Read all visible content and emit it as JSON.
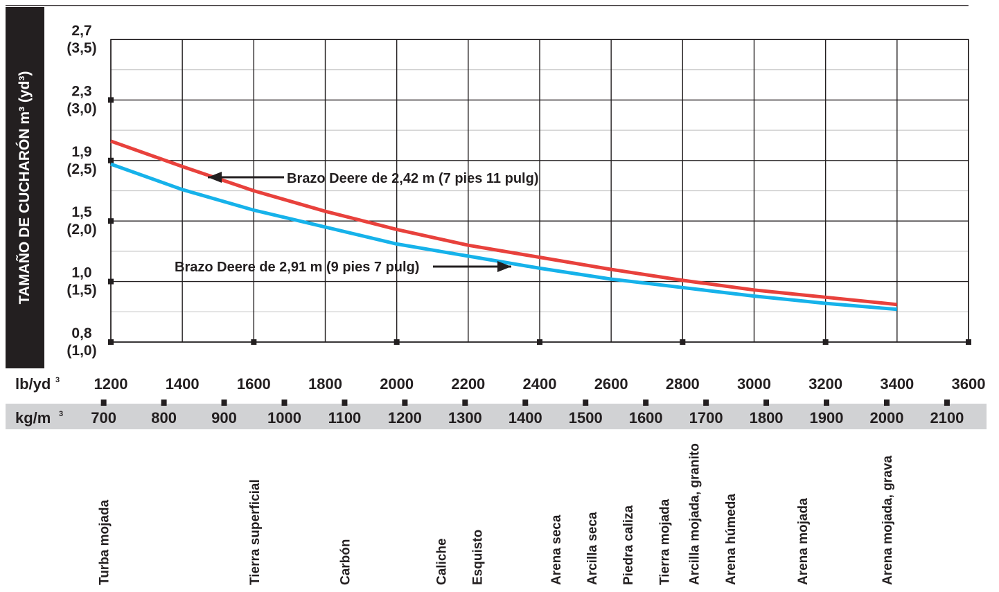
{
  "chart_data": {
    "type": "line",
    "ylabel": "TAMAÑO DE CUCHARÓN m³ (yd³)",
    "y_ticks": [
      {
        "m3": "2,7",
        "yd3": "(3,5)"
      },
      {
        "m3": "2,3",
        "yd3": "(3,0)"
      },
      {
        "m3": "1,9",
        "yd3": "(2,5)"
      },
      {
        "m3": "1,5",
        "yd3": "(2,0)"
      },
      {
        "m3": "1,0",
        "yd3": "(1,5)"
      },
      {
        "m3": "0,8",
        "yd3": "(1,0)"
      }
    ],
    "ylim_yd3": [
      1.0,
      3.5
    ],
    "x_axis_lb": {
      "label": "lb/yd",
      "sup": "3",
      "ticks": [
        1200,
        1400,
        1600,
        1800,
        2000,
        2200,
        2400,
        2600,
        2800,
        3000,
        3200,
        3400,
        3600
      ]
    },
    "x_axis_kg": {
      "label": "kg/m",
      "sup": "3",
      "ticks": [
        700,
        800,
        900,
        1000,
        1100,
        1200,
        1300,
        1400,
        1500,
        1600,
        1700,
        1800,
        1900,
        2000,
        2100
      ]
    },
    "xlim_lb": [
      1200,
      3600
    ],
    "grid": true,
    "series": [
      {
        "name": "Brazo Deere de 2,42 m (7 pies 11 pulg)",
        "color": "#e8413c",
        "x": [
          1200,
          1400,
          1600,
          1800,
          2000,
          2200,
          2400,
          2600,
          2800,
          3000,
          3200,
          3400
        ],
        "y": [
          2.66,
          2.45,
          2.25,
          2.08,
          1.93,
          1.8,
          1.7,
          1.6,
          1.51,
          1.43,
          1.37,
          1.31
        ]
      },
      {
        "name": "Brazo Deere de 2,91 m (9 pies 7 pulg)",
        "color": "#16b2ea",
        "x": [
          1200,
          1400,
          1600,
          1800,
          2000,
          2200,
          2400,
          2600,
          2800,
          3000,
          3200,
          3400
        ],
        "y": [
          2.47,
          2.26,
          2.09,
          1.95,
          1.81,
          1.71,
          1.61,
          1.52,
          1.45,
          1.38,
          1.32,
          1.27
        ]
      }
    ],
    "materials": [
      {
        "name": "Turba mojada",
        "kg": 700
      },
      {
        "name": "Tierra superficial",
        "kg": 950
      },
      {
        "name": "Carbón",
        "kg": 1100
      },
      {
        "name": "Caliche",
        "kg": 1260
      },
      {
        "name": "Esquisto",
        "kg": 1320
      },
      {
        "name": "Arena seca",
        "kg": 1450
      },
      {
        "name": "Arcilla seca",
        "kg": 1510
      },
      {
        "name": "Piedra caliza",
        "kg": 1570
      },
      {
        "name": "Tierra mojada",
        "kg": 1630
      },
      {
        "name": "Arcilla mojada, granito",
        "kg": 1680
      },
      {
        "name": "Arena húmeda",
        "kg": 1740
      },
      {
        "name": "Arena mojada",
        "kg": 1860
      },
      {
        "name": "Arena mojada, grava",
        "kg": 2000
      }
    ]
  }
}
